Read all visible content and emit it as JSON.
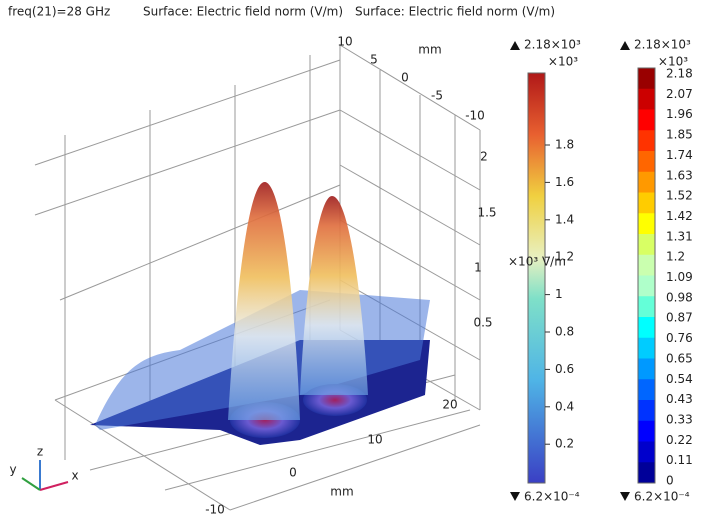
{
  "header": {
    "frequency": "freq(21)=28 GHz",
    "titles": [
      "Surface: Electric field norm (V/m)",
      "Surface: Electric field norm (V/m)"
    ]
  },
  "axes": {
    "x_ticks": [
      "-10",
      "0",
      "10",
      "20"
    ],
    "x_unit": "mm",
    "y_ticks": [
      "10",
      "5",
      "0",
      "-5",
      "-10"
    ],
    "y_unit": "mm",
    "z_ticks": [
      "2",
      "1.5",
      "1",
      "0.5"
    ],
    "z_label": "×10³ V/m"
  },
  "colorbars": [
    {
      "max_label": "2.18×10³",
      "scale": "×10³",
      "ticks": [
        "1.8",
        "1.6",
        "1.4",
        "1.2",
        "1",
        "0.8",
        "0.6",
        "0.4",
        "0.2"
      ],
      "min_label": "6.2×10⁻⁴"
    },
    {
      "max_label": "2.18×10³",
      "scale": "×10³",
      "ticks": [
        "2.18",
        "2.07",
        "1.96",
        "1.85",
        "1.74",
        "1.63",
        "1.52",
        "1.42",
        "1.31",
        "1.2",
        "1.09",
        "0.98",
        "0.87",
        "0.76",
        "0.65",
        "0.54",
        "0.43",
        "0.33",
        "0.22",
        "0.11",
        "0"
      ],
      "min_label": "6.2×10⁻⁴"
    }
  ],
  "triad": {
    "x": "x",
    "y": "y",
    "z": "z"
  }
}
